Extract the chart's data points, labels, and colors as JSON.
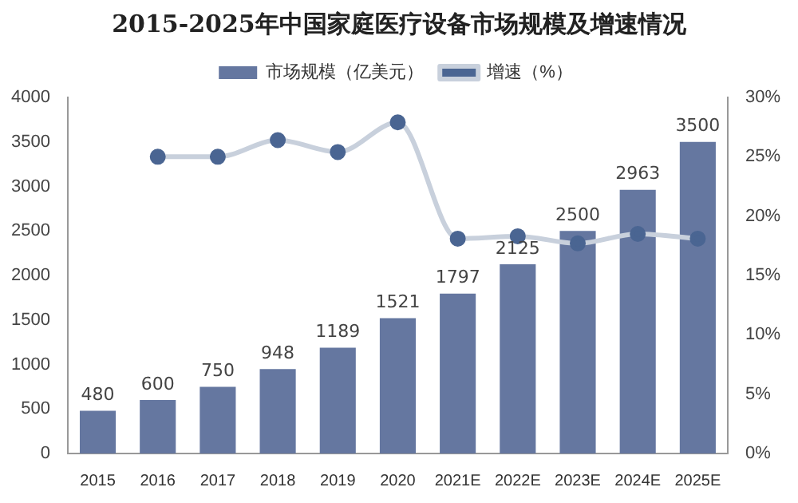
{
  "chart_data": {
    "type": "bar",
    "title": "2015-2025年中国家庭医疗设备市场规模及增速情况",
    "categories": [
      "2015",
      "2016",
      "2017",
      "2018",
      "2019",
      "2020",
      "2021E",
      "2022E",
      "2023E",
      "2024E",
      "2025E"
    ],
    "series": [
      {
        "name": "市场规模（亿美元）",
        "color": "#6577a0",
        "values": [
          480,
          600,
          750,
          948,
          1189,
          1521,
          1797,
          2125,
          2500,
          2963,
          3500
        ],
        "data_labels": true
      },
      {
        "name": "增速（%）",
        "type": "line",
        "axis": "y2",
        "color": "#4a6592",
        "values": [
          null,
          25,
          25,
          26.4,
          25.4,
          27.9,
          18.1,
          18.3,
          17.7,
          18.5,
          18.1
        ]
      }
    ],
    "ylim": [
      0,
      4000
    ],
    "yticks": [
      0,
      500,
      1000,
      1500,
      2000,
      2500,
      3000,
      3500,
      4000
    ],
    "y2lim": [
      0,
      30
    ],
    "y2ticks": [
      {
        "value": 0,
        "label": "0%"
      },
      {
        "value": 5,
        "label": "5%"
      },
      {
        "value": 10,
        "label": "10%"
      },
      {
        "value": 15,
        "label": "15%"
      },
      {
        "value": 20,
        "label": "20%"
      },
      {
        "value": 25,
        "label": "25%"
      },
      {
        "value": 30,
        "label": "30%"
      }
    ],
    "legend": "top",
    "marker": "circle",
    "grid": false
  }
}
